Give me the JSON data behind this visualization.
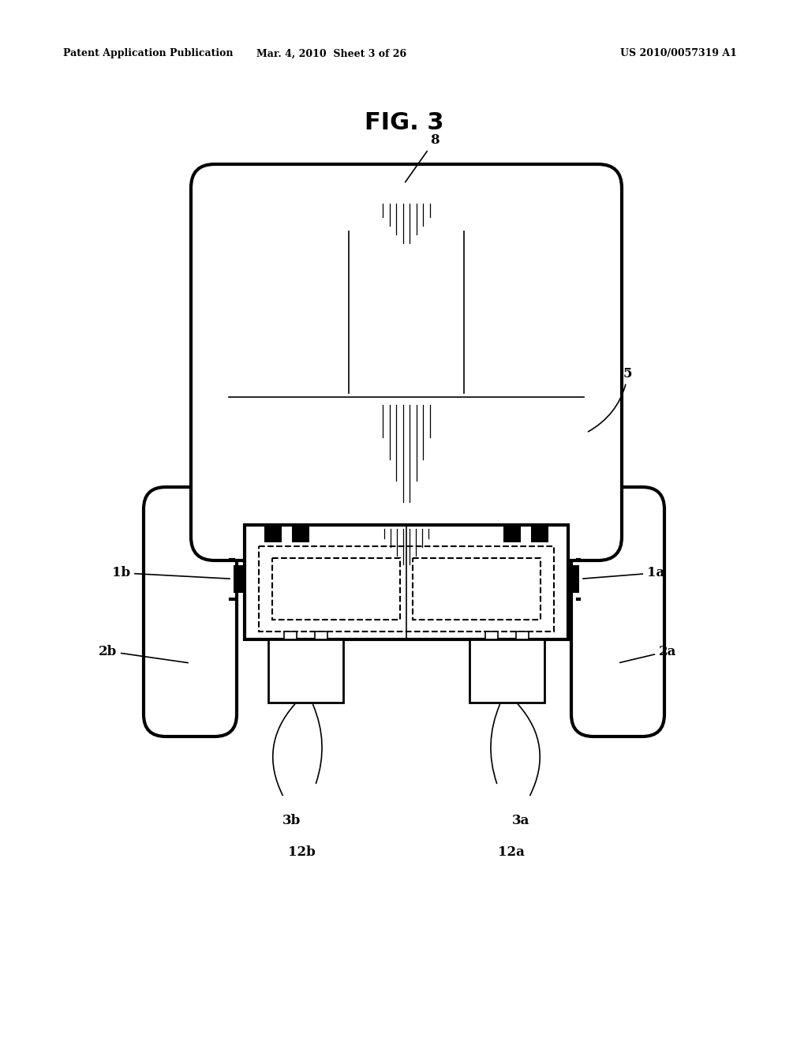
{
  "bg_color": "#ffffff",
  "header_left": "Patent Application Publication",
  "header_mid": "Mar. 4, 2010  Sheet 3 of 26",
  "header_right": "US 2010/0057319 A1",
  "fig_title": "FIG. 3",
  "lw_thick": 3.0,
  "lw_med": 2.0,
  "lw_thin": 1.2,
  "label_fontsize": 12,
  "header_fontsize": 9,
  "title_fontsize": 22
}
